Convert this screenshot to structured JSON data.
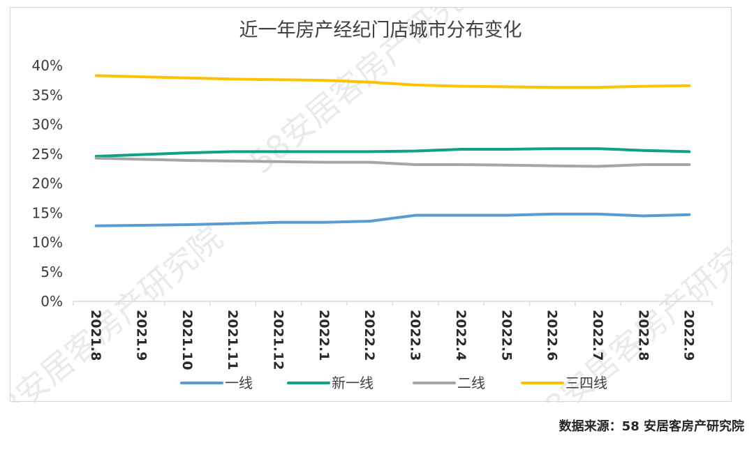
{
  "chart_data": {
    "type": "line",
    "title": "近一年房产经纪门店城市分布变化",
    "categories": [
      "2021.8",
      "2021.9",
      "2021.10",
      "2021.11",
      "2021.12",
      "2022.1",
      "2022.2",
      "2022.3",
      "2022.4",
      "2022.5",
      "2022.6",
      "2022.7",
      "2022.8",
      "2022.9"
    ],
    "y_ticks": [
      "0%",
      "5%",
      "10%",
      "15%",
      "20%",
      "25%",
      "30%",
      "35%",
      "40%"
    ],
    "ylim": [
      0,
      40
    ],
    "y_unit": "%",
    "grid": false,
    "legend_position": "bottom",
    "series": [
      {
        "name": "一线",
        "color": "#5b9bd5",
        "values": [
          12.8,
          12.9,
          13.0,
          13.2,
          13.4,
          13.4,
          13.6,
          14.6,
          14.6,
          14.6,
          14.8,
          14.8,
          14.5,
          14.7
        ]
      },
      {
        "name": "新一线",
        "color": "#11a085",
        "values": [
          24.6,
          24.9,
          25.2,
          25.4,
          25.4,
          25.4,
          25.4,
          25.5,
          25.8,
          25.8,
          25.9,
          25.9,
          25.6,
          25.4
        ]
      },
      {
        "name": "二线",
        "color": "#a5a5a5",
        "values": [
          24.3,
          24.1,
          23.9,
          23.8,
          23.7,
          23.6,
          23.6,
          23.2,
          23.2,
          23.1,
          23.0,
          22.9,
          23.2,
          23.2
        ]
      },
      {
        "name": "三四线",
        "color": "#ffc000",
        "values": [
          38.3,
          38.1,
          37.9,
          37.7,
          37.6,
          37.5,
          37.2,
          36.7,
          36.5,
          36.4,
          36.3,
          36.3,
          36.5,
          36.6
        ]
      }
    ]
  },
  "watermark_text": "58安居客房产研究院",
  "source_note": "数据来源：58 安居客房产研究院"
}
